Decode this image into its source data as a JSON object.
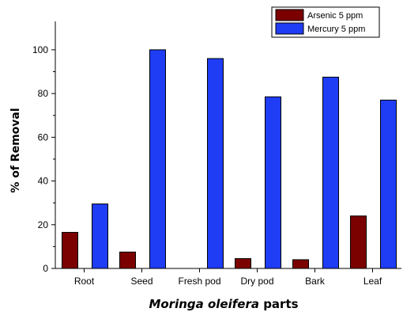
{
  "chart_data": {
    "type": "bar",
    "categories": [
      "Root",
      "Seed",
      "Fresh pod",
      "Dry pod",
      "Bark",
      "Leaf"
    ],
    "series": [
      {
        "name": "Arsenic 5 ppm",
        "values": [
          16.5,
          7.5,
          0,
          4.5,
          4,
          24
        ],
        "color": "#7b0000"
      },
      {
        "name": "Mercury 5 ppm",
        "values": [
          29.5,
          100,
          96,
          78.5,
          87.5,
          77
        ],
        "color": "#1f3df5"
      }
    ],
    "xlabel_italic": "Moringa oleifera",
    "xlabel_rest": " parts",
    "ylabel": "% of Removal",
    "ylim": [
      0,
      113
    ],
    "yticks": [
      0,
      20,
      40,
      60,
      80,
      100
    ],
    "grid": false,
    "legend_position": "top-right"
  }
}
